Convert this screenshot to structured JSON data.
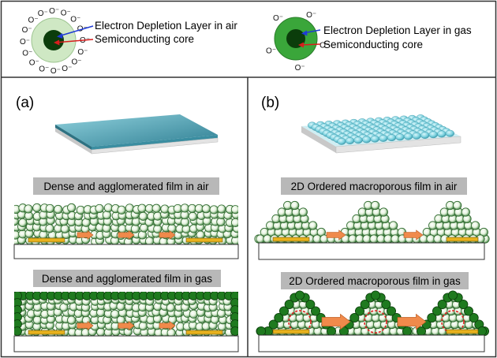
{
  "legend": {
    "air": {
      "depletion_label": "Electron Depletion Layer in air",
      "core_label": "Semiconducting core",
      "charge_symbol": "O⁻"
    },
    "gas": {
      "depletion_label": "Electron Depletion Layer in gas",
      "core_label": "Semiconducting core",
      "charge_symbol": "O⁻"
    }
  },
  "panels": {
    "a": {
      "label": "(a)",
      "film_air_title": "Dense and agglomerated film in air",
      "film_gas_title": "Dense and agglomerated film in gas"
    },
    "b": {
      "label": "(b)",
      "film_air_title": "2D Ordered macroporous film in air",
      "film_gas_title": "2D Ordered macroporous film in gas"
    }
  },
  "colors": {
    "depletion_air": "#cfe8c4",
    "depletion_gas": "#3aa63a",
    "core": "#0b3d0b",
    "dense_film": "#4f9cb0",
    "ordered_spheres": "#7fd3e0",
    "electrode": "#e8b21e",
    "arrow": "#f08a4b",
    "title_box": "#b8b8b8",
    "border": "#333333"
  },
  "icons": {
    "depletion_pointer": "blue-arrow-icon",
    "core_pointer": "red-arrow-icon",
    "electron_flow": "orange-arrow-icon"
  }
}
